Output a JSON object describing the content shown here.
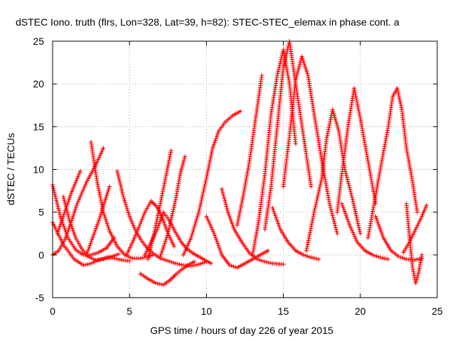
{
  "chart_data": {
    "type": "scatter",
    "title": "dSTEC Iono. truth (flrs, Lon=328, Lat=39, h=82): STEC-STEC_elemax in phase cont. a",
    "xlabel": "GPS time / hours of day 226 of year 2015",
    "ylabel": "dSTEC  / TECUs",
    "xlim": [
      0,
      25
    ],
    "ylim": [
      -5,
      25
    ],
    "xticks": [
      "0",
      "5",
      "10",
      "15",
      "20",
      "25"
    ],
    "yticks": [
      "-5",
      "0",
      "5",
      "10",
      "15",
      "20",
      "25"
    ],
    "grid": true,
    "marker": "+",
    "color": "#ff0000",
    "series": [
      {
        "x": [
          0.0,
          0.5,
          1.0,
          1.5,
          2.0,
          2.5,
          3.0,
          3.5,
          4.0
        ],
        "y": [
          8.2,
          4.5,
          2.0,
          0.6,
          0.0,
          0.0,
          0.3,
          0.8,
          2.0
        ]
      },
      {
        "x": [
          0.0,
          0.7,
          1.4,
          2.0,
          2.5,
          3.0,
          3.5,
          4.0,
          4.5,
          5.0
        ],
        "y": [
          3.8,
          1.2,
          -0.5,
          -1.2,
          -1.0,
          -0.6,
          -0.3,
          -0.4,
          -0.6,
          -0.7
        ]
      },
      {
        "x": [
          0.0,
          0.4,
          0.8,
          1.2,
          1.6,
          2.2,
          2.8,
          3.3
        ],
        "y": [
          0.0,
          0.5,
          1.8,
          3.8,
          6.0,
          8.5,
          10.5,
          12.5
        ]
      },
      {
        "x": [
          0.3,
          0.6,
          0.9,
          1.2,
          1.5,
          1.8
        ],
        "y": [
          2.5,
          4.0,
          5.6,
          7.2,
          8.5,
          9.8
        ]
      },
      {
        "x": [
          0.7,
          1.1,
          1.5,
          1.9,
          2.3,
          2.8,
          3.3,
          3.8,
          4.3
        ],
        "y": [
          6.8,
          4.0,
          2.0,
          0.7,
          -0.2,
          -0.6,
          -0.5,
          -0.2,
          0.1
        ]
      },
      {
        "x": [
          2.5,
          2.9,
          3.3,
          3.7,
          4.2,
          4.7,
          5.2,
          5.7,
          6.2,
          6.5
        ],
        "y": [
          13.2,
          8.5,
          5.0,
          2.8,
          1.0,
          0.0,
          -0.4,
          -0.4,
          -0.2,
          0.0
        ]
      },
      {
        "x": [
          2.2,
          2.6,
          3.0,
          3.4,
          3.7
        ],
        "y": [
          0.0,
          2.0,
          4.0,
          6.3,
          8.0
        ]
      },
      {
        "x": [
          4.2,
          4.6,
          5.0,
          5.4,
          5.8,
          6.2,
          6.6,
          7.0,
          7.5,
          8.0,
          8.5,
          9.0,
          9.5,
          10.0
        ],
        "y": [
          9.8,
          6.8,
          4.5,
          2.8,
          1.6,
          0.7,
          0.1,
          -0.4,
          -0.7,
          -1.0,
          -1.2,
          -1.3,
          -1.1,
          -0.8
        ]
      },
      {
        "x": [
          4.8,
          5.2,
          5.6,
          6.0,
          6.4,
          6.8,
          7.2,
          7.5,
          7.9
        ],
        "y": [
          0.0,
          1.5,
          3.2,
          5.0,
          6.3,
          5.6,
          4.0,
          2.5,
          1.0
        ]
      },
      {
        "x": [
          6.0,
          6.4,
          6.8,
          7.2,
          7.6,
          8.0,
          8.4,
          8.8,
          9.3,
          9.8,
          10.3
        ],
        "y": [
          0.0,
          1.5,
          3.0,
          5.0,
          4.0,
          2.6,
          1.4,
          0.6,
          0.0,
          -0.5,
          -1.0
        ]
      },
      {
        "x": [
          5.7,
          6.2,
          6.7,
          7.2,
          7.6,
          8.0,
          8.4,
          8.8,
          9.2
        ],
        "y": [
          -2.2,
          -2.8,
          -3.3,
          -3.5,
          -3.0,
          -2.3,
          -1.7,
          -1.2,
          -0.8
        ]
      },
      {
        "x": [
          6.2,
          6.6,
          7.0,
          7.4,
          7.7
        ],
        "y": [
          -0.5,
          2.5,
          6.0,
          9.5,
          12.2
        ]
      },
      {
        "x": [
          7.0,
          7.5,
          8.0,
          8.3,
          8.6
        ],
        "y": [
          -0.2,
          2.5,
          6.5,
          9.5,
          11.5
        ]
      },
      {
        "x": [
          8.5,
          9.0,
          9.5,
          10.0,
          10.4,
          10.8,
          11.2,
          11.7,
          12.2
        ],
        "y": [
          0.0,
          2.0,
          5.0,
          9.0,
          12.5,
          14.5,
          15.5,
          16.3,
          16.8
        ]
      },
      {
        "x": [
          10.0,
          10.5,
          11.0,
          11.5,
          12.0,
          12.5,
          13.0,
          13.5,
          14.0
        ],
        "y": [
          4.5,
          2.5,
          0.0,
          -1.2,
          -1.5,
          -1.0,
          -0.5,
          0.0,
          0.5
        ]
      },
      {
        "x": [
          11.0,
          11.4,
          11.8,
          12.3,
          12.8,
          13.3,
          13.8,
          14.3,
          15.0
        ],
        "y": [
          7.7,
          5.0,
          3.0,
          1.5,
          0.2,
          -0.5,
          -0.8,
          -1.0,
          -1.1
        ]
      },
      {
        "x": [
          12.0,
          12.4,
          12.8,
          13.2,
          13.6
        ],
        "y": [
          3.5,
          7.0,
          11.0,
          16.0,
          21.0
        ]
      },
      {
        "x": [
          13.0,
          13.4,
          13.8,
          14.2,
          14.6,
          15.0,
          15.4,
          15.8
        ],
        "y": [
          0.0,
          4.0,
          9.5,
          16.5,
          21.0,
          24.0,
          20.0,
          13.0
        ]
      },
      {
        "x": [
          13.8,
          14.2,
          14.6,
          15.0,
          15.4,
          15.8,
          16.3,
          16.8
        ],
        "y": [
          3.0,
          8.0,
          15.0,
          22.0,
          25.0,
          20.0,
          14.0,
          8.0
        ]
      },
      {
        "x": [
          15.0,
          15.4,
          15.8,
          16.2,
          16.6,
          17.0,
          17.5,
          18.0,
          18.5
        ],
        "y": [
          8.0,
          14.0,
          20.5,
          23.2,
          21.0,
          16.5,
          11.0,
          6.0,
          2.5
        ]
      },
      {
        "x": [
          14.3,
          14.8,
          15.3,
          15.8,
          16.3,
          16.8,
          17.3
        ],
        "y": [
          5.5,
          3.0,
          1.5,
          0.5,
          0.0,
          -0.3,
          -0.5
        ]
      },
      {
        "x": [
          16.5,
          17.0,
          17.5,
          17.8,
          18.2,
          18.6,
          19.0,
          19.5,
          20.0
        ],
        "y": [
          0.5,
          5.0,
          9.0,
          13.5,
          17.0,
          14.5,
          10.0,
          6.5,
          2.5
        ]
      },
      {
        "x": [
          18.5,
          18.8,
          19.2,
          19.6,
          20.0,
          20.5,
          21.0
        ],
        "y": [
          5.0,
          9.5,
          15.0,
          19.5,
          16.0,
          11.0,
          6.0
        ]
      },
      {
        "x": [
          18.8,
          19.3,
          19.8,
          20.3,
          20.8,
          21.3,
          21.8
        ],
        "y": [
          6.0,
          3.5,
          1.5,
          0.5,
          0.0,
          -0.3,
          -0.5
        ]
      },
      {
        "x": [
          20.5,
          21.0,
          21.4,
          21.8,
          22.1,
          22.4,
          22.7,
          23.0,
          23.4,
          23.7
        ],
        "y": [
          2.0,
          7.0,
          11.0,
          14.8,
          18.5,
          19.5,
          17.0,
          12.5,
          8.5,
          5.0
        ]
      },
      {
        "x": [
          21.0,
          21.5,
          22.0,
          22.5,
          23.0,
          23.5,
          24.0
        ],
        "y": [
          4.5,
          2.0,
          0.5,
          -0.2,
          -0.5,
          -0.6,
          -0.4
        ]
      },
      {
        "x": [
          23.0,
          23.2,
          23.4,
          23.6,
          23.8,
          24.0
        ],
        "y": [
          6.0,
          2.0,
          -1.5,
          -3.3,
          -2.0,
          0.0
        ]
      },
      {
        "x": [
          22.8,
          23.2,
          23.6,
          24.0,
          24.3
        ],
        "y": [
          0.3,
          1.5,
          3.0,
          4.5,
          5.8
        ]
      }
    ]
  }
}
